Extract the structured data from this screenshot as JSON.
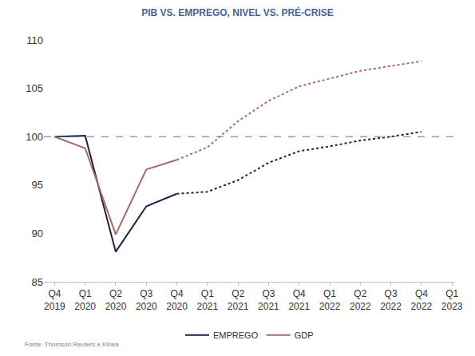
{
  "chart_data": {
    "type": "line",
    "title": "PIB VS. EMPREGO, NIVEL VS. PRÉ-CRISE",
    "source": "Fonte: Thomson Reuters e Kinea",
    "categories": [
      "Q4 2019",
      "Q1 2020",
      "Q2 2020",
      "Q3 2020",
      "Q4 2020",
      "Q1 2021",
      "Q2 2021",
      "Q3 2021",
      "Q4 2021",
      "Q1 2022",
      "Q2 2022",
      "Q3 2022",
      "Q4 2022",
      "Q1 2023"
    ],
    "series": [
      {
        "name": "EMPREGO",
        "color": "#1f1f4e",
        "line_style": "solid",
        "values": [
          100,
          100.1,
          88.1,
          92.8,
          94.1,
          null,
          null,
          null,
          null,
          null,
          null,
          null,
          null,
          null
        ]
      },
      {
        "name": "EMPREGO",
        "color": "#1f1f4e",
        "line_style": "dashed",
        "values": [
          null,
          null,
          null,
          null,
          94.1,
          94.3,
          95.5,
          97.3,
          98.5,
          99.0,
          99.6,
          100.0,
          100.5,
          null
        ]
      },
      {
        "name": "GDP",
        "color": "#a86a6a",
        "line_style": "solid",
        "values": [
          100,
          98.8,
          89.9,
          96.6,
          97.6,
          null,
          null,
          null,
          null,
          null,
          null,
          null,
          null,
          null
        ]
      },
      {
        "name": "GDP",
        "color": "#a86a6a",
        "line_style": "dashed",
        "values": [
          null,
          null,
          null,
          null,
          97.6,
          98.9,
          101.6,
          103.7,
          105.2,
          106.0,
          106.8,
          107.3,
          107.8,
          null
        ]
      }
    ],
    "hline": 100,
    "ylim": [
      85,
      110
    ],
    "yticks": [
      85,
      90,
      95,
      100,
      105,
      110
    ],
    "grid": false,
    "legend": "bottom"
  }
}
